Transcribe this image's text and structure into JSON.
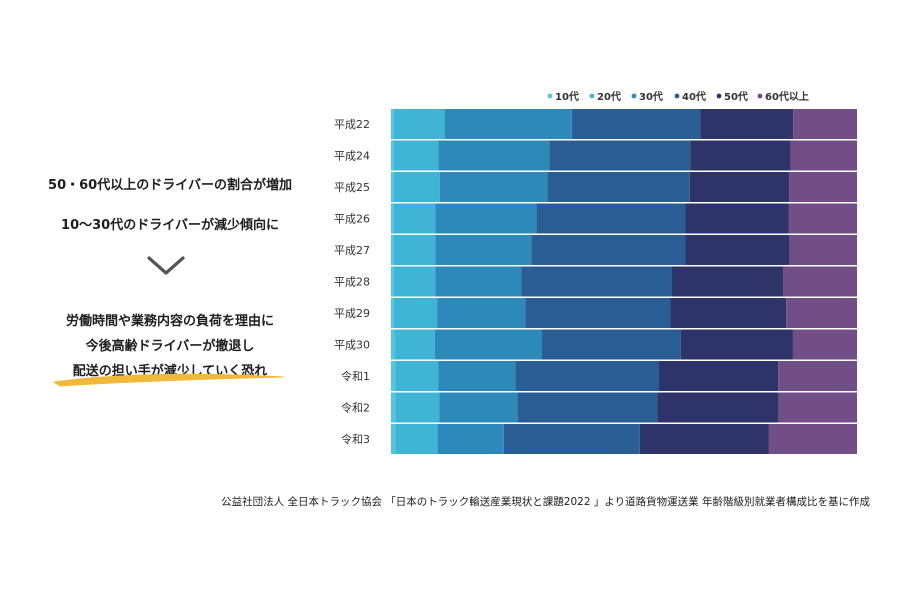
{
  "left_panel": {
    "line1": "50・60代以上のドライバーの割合が増加",
    "line2": "10〜30代のドライバーが減少傾向に",
    "line3": "労働時間や業務内容の負荷を理由に",
    "line4": "今後高齢ドライバーが撤退し",
    "line5": "配送の担い手が減少していく恐れ"
  },
  "colors": {
    "highlight": "#f0b93a",
    "chevron": "#555555",
    "series": [
      "#4ec8e0",
      "#3fb4d5",
      "#2c89ba",
      "#2b5d95",
      "#2f3468",
      "#724e86"
    ]
  },
  "chart_data": {
    "type": "bar",
    "orientation": "horizontal",
    "stacked": true,
    "normalized": true,
    "title": "",
    "xlabel": "",
    "ylabel": "",
    "categories": [
      "平成22",
      "平成24",
      "平成25",
      "平成26",
      "平成27",
      "平成28",
      "平成29",
      "平成30",
      "令和1",
      "令和2",
      "令和3"
    ],
    "series": [
      {
        "name": "10代",
        "values": [
          0.6,
          0.6,
          0.6,
          0.6,
          0.6,
          0.6,
          0.6,
          0.9,
          0.9,
          0.9,
          0.9
        ]
      },
      {
        "name": "20代",
        "values": [
          10.9,
          9.6,
          9.9,
          8.9,
          8.9,
          8.9,
          9.3,
          8.9,
          9.3,
          9.5,
          9.1
        ]
      },
      {
        "name": "30代",
        "values": [
          27.3,
          23.8,
          23.1,
          21.7,
          20.6,
          18.5,
          18.9,
          23.9,
          16.5,
          16.7,
          14.2
        ]
      },
      {
        "name": "40代",
        "values": [
          27.6,
          30.2,
          30.5,
          32.0,
          33.1,
          32.3,
          31.1,
          31.0,
          30.8,
          30.1,
          29.2
        ]
      },
      {
        "name": "50代",
        "values": [
          19.9,
          21.6,
          21.3,
          22.1,
          22.3,
          23.9,
          24.9,
          25.0,
          25.6,
          26.0,
          27.7
        ]
      },
      {
        "name": "60代以上",
        "values": [
          13.7,
          14.2,
          14.6,
          14.7,
          14.5,
          15.8,
          15.2,
          14.3,
          16.9,
          16.8,
          18.9
        ]
      }
    ],
    "xlim": [
      0,
      100
    ],
    "legend_position": "top-right"
  },
  "source": "公益社団法人 全日本トラック協会 「日本のトラック輸送産業現状と課題2022 」より道路貨物運送業 年齢階級別就業者構成比を基に作成"
}
